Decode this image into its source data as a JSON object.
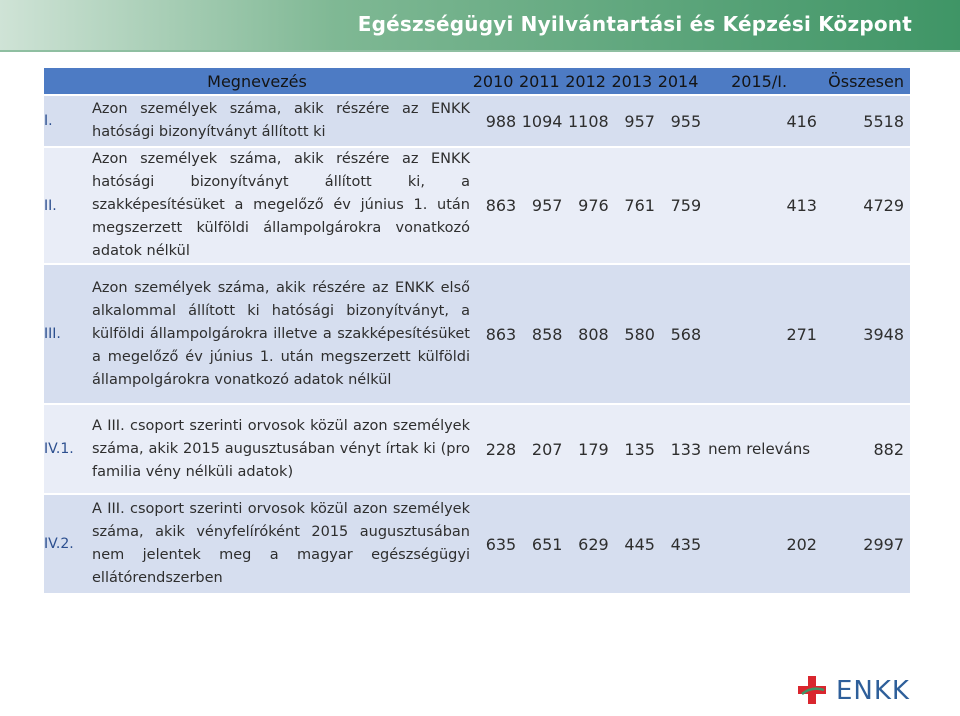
{
  "header": {
    "title": "Egészségügyi Nyilvántartási és Képzési Központ"
  },
  "table": {
    "columns": [
      "Megnevezés",
      "2010",
      "2011",
      "2012",
      "2013",
      "2014",
      "2015/I.",
      "Összesen"
    ],
    "rows": [
      {
        "id": "I.",
        "description": "Azon személyek száma, akik részére az ENKK hatósági bizonyítványt állított ki",
        "values": [
          "988",
          "1094",
          "1108",
          "957",
          "955",
          "416",
          "5518"
        ]
      },
      {
        "id": "II.",
        "description": "Azon személyek száma, akik részére az ENKK hatósági bizonyítványt állított ki, a szakképesítésüket a megelőző év június 1. után megszerzett külföldi állampolgárokra vonatkozó adatok nélkül",
        "values": [
          "863",
          "957",
          "976",
          "761",
          "759",
          "413",
          "4729"
        ]
      },
      {
        "id": "III.",
        "description": "Azon személyek száma, akik részére az ENKK első alkalommal állított ki hatósági bizonyítványt, a külföldi állampolgárokra illetve a szakképesítésüket a megelőző év június 1. után megszerzett külföldi állampolgárokra vonatkozó adatok nélkül",
        "values": [
          "863",
          "858",
          "808",
          "580",
          "568",
          "271",
          "3948"
        ]
      },
      {
        "id": "IV.1.",
        "description": "A III. csoport szerinti orvosok közül azon személyek száma, akik 2015 augusztusában vényt írtak ki (pro familia vény nélküli adatok)",
        "values": [
          "228",
          "207",
          "179",
          "135",
          "133",
          "nem releváns",
          "882"
        ]
      },
      {
        "id": "IV.2.",
        "description": "A III. csoport szerinti orvosok közül azon személyek száma, akik vényfelíróként 2015 augusztusában nem jelentek meg a magyar egészségügyi ellátórendszerben",
        "values": [
          "635",
          "651",
          "629",
          "445",
          "435",
          "202",
          "2997"
        ]
      }
    ]
  },
  "logo": {
    "text": "ENKK",
    "icon": "red-cross-logo-icon",
    "colors": {
      "cross": "#d9262e",
      "text": "#2e5f9a",
      "accent": "#3f9566"
    }
  }
}
